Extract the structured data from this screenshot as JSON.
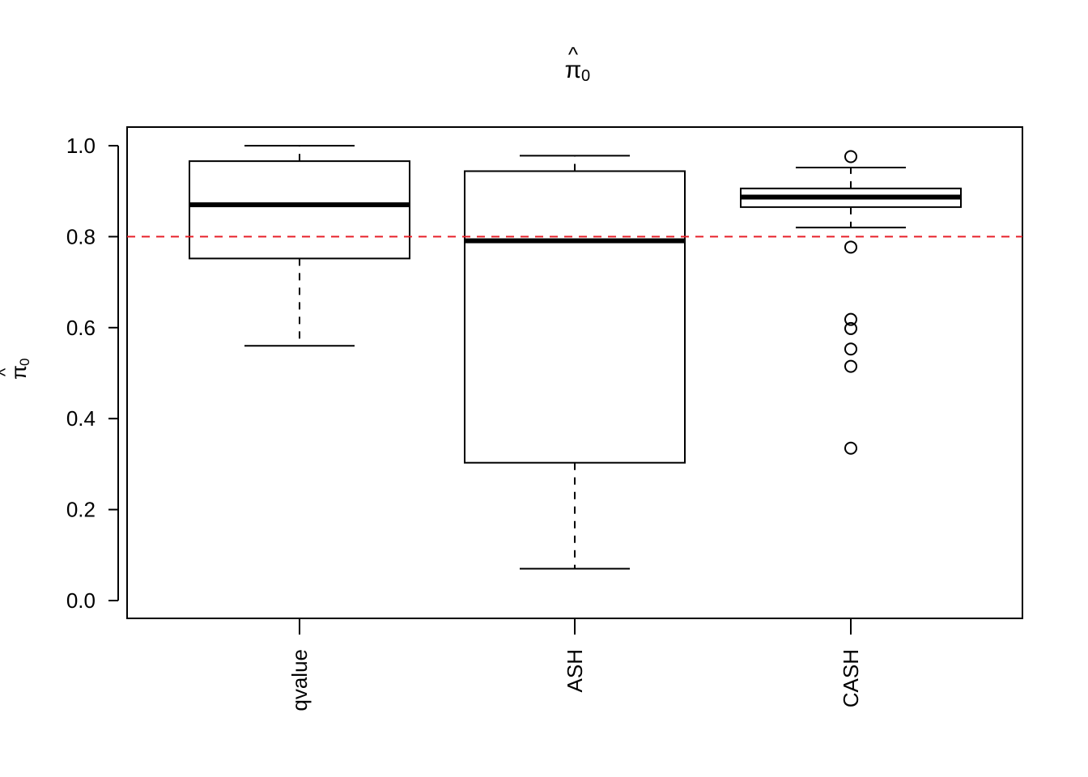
{
  "chart_data": {
    "type": "boxplot",
    "title": {
      "symbol": "π",
      "hat": "^",
      "subscript": "0"
    },
    "ylabel": {
      "symbol": "π",
      "hat": "^",
      "subscript": "0"
    },
    "xlabel": "",
    "categories": [
      "qvalue",
      "ASH",
      "CASH"
    ],
    "ylim": [
      0.0,
      1.0
    ],
    "yticks": [
      0.0,
      0.2,
      0.4,
      0.6,
      0.8,
      1.0
    ],
    "ytick_labels": [
      "0.0",
      "0.2",
      "0.4",
      "0.6",
      "0.8",
      "1.0"
    ],
    "grid": false,
    "boxes": [
      {
        "name": "qvalue",
        "whisker_low": 0.56,
        "q1": 0.752,
        "median": 0.87,
        "q3": 0.966,
        "whisker_high": 1.0,
        "outliers": []
      },
      {
        "name": "ASH",
        "whisker_low": 0.07,
        "q1": 0.303,
        "median": 0.791,
        "q3": 0.944,
        "whisker_high": 0.978,
        "outliers": []
      },
      {
        "name": "CASH",
        "whisker_low": 0.82,
        "q1": 0.865,
        "median": 0.887,
        "q3": 0.906,
        "whisker_high": 0.952,
        "outliers": [
          0.976,
          0.777,
          0.618,
          0.598,
          0.553,
          0.515,
          0.335
        ]
      }
    ],
    "reference_line": {
      "y": 0.8,
      "color": "#e8202a",
      "style": "dashed"
    },
    "colors": {
      "box": "#000000",
      "reference": "#e8202a"
    }
  }
}
